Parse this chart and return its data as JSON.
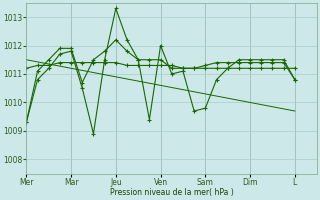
{
  "background_color": "#cce8e8",
  "grid_color": "#aacccc",
  "line_color": "#1a6600",
  "xlabel": "Pression niveau de la mer( hPa )",
  "ylim": [
    1007.5,
    1013.5
  ],
  "yticks": [
    1008,
    1009,
    1010,
    1011,
    1012,
    1013
  ],
  "day_labels": [
    "Mer",
    "Mar",
    "Jeu",
    "Ven",
    "Sam",
    "Dim",
    "L"
  ],
  "day_positions": [
    0,
    48,
    96,
    144,
    192,
    240,
    288
  ],
  "xlim": [
    0,
    312
  ],
  "series1_x": [
    0,
    12,
    24,
    36,
    48,
    60,
    72,
    84,
    96,
    108,
    120,
    132,
    144,
    156,
    168,
    180,
    192,
    204,
    216,
    228,
    240,
    252,
    264,
    276,
    288
  ],
  "series1_y": [
    1009.3,
    1010.8,
    1011.2,
    1011.7,
    1011.8,
    1010.5,
    1008.9,
    1011.5,
    1013.3,
    1012.2,
    1011.5,
    1009.4,
    1012.0,
    1011.0,
    1011.1,
    1009.7,
    1009.8,
    1010.8,
    1011.2,
    1011.5,
    1011.5,
    1011.5,
    1011.5,
    1011.5,
    1010.8
  ],
  "series2_x": [
    0,
    12,
    24,
    36,
    48,
    60,
    72,
    84,
    96,
    108,
    120,
    132,
    144,
    156,
    168,
    180,
    192,
    204,
    216,
    228,
    240,
    252,
    264,
    276,
    288
  ],
  "series2_y": [
    1011.2,
    1011.3,
    1011.3,
    1011.4,
    1011.4,
    1011.4,
    1011.4,
    1011.4,
    1011.4,
    1011.3,
    1011.3,
    1011.3,
    1011.3,
    1011.3,
    1011.2,
    1011.2,
    1011.2,
    1011.2,
    1011.2,
    1011.2,
    1011.2,
    1011.2,
    1011.2,
    1011.2,
    1011.2
  ],
  "series3_x": [
    0,
    12,
    24,
    36,
    48,
    60,
    72,
    84,
    96,
    108,
    120,
    132,
    144,
    156,
    168,
    180,
    192,
    204,
    216,
    228,
    240,
    252,
    264,
    276,
    288
  ],
  "series3_y": [
    1009.3,
    1011.1,
    1011.5,
    1011.9,
    1011.9,
    1010.7,
    1011.5,
    1011.8,
    1012.2,
    1011.8,
    1011.5,
    1011.5,
    1011.5,
    1011.2,
    1011.2,
    1011.2,
    1011.3,
    1011.4,
    1011.4,
    1011.4,
    1011.4,
    1011.4,
    1011.4,
    1011.4,
    1010.8
  ],
  "trend_x": [
    0,
    288
  ],
  "trend_y": [
    1011.5,
    1009.7
  ],
  "label_fontsize": 5.5,
  "tick_fontsize": 5.5
}
